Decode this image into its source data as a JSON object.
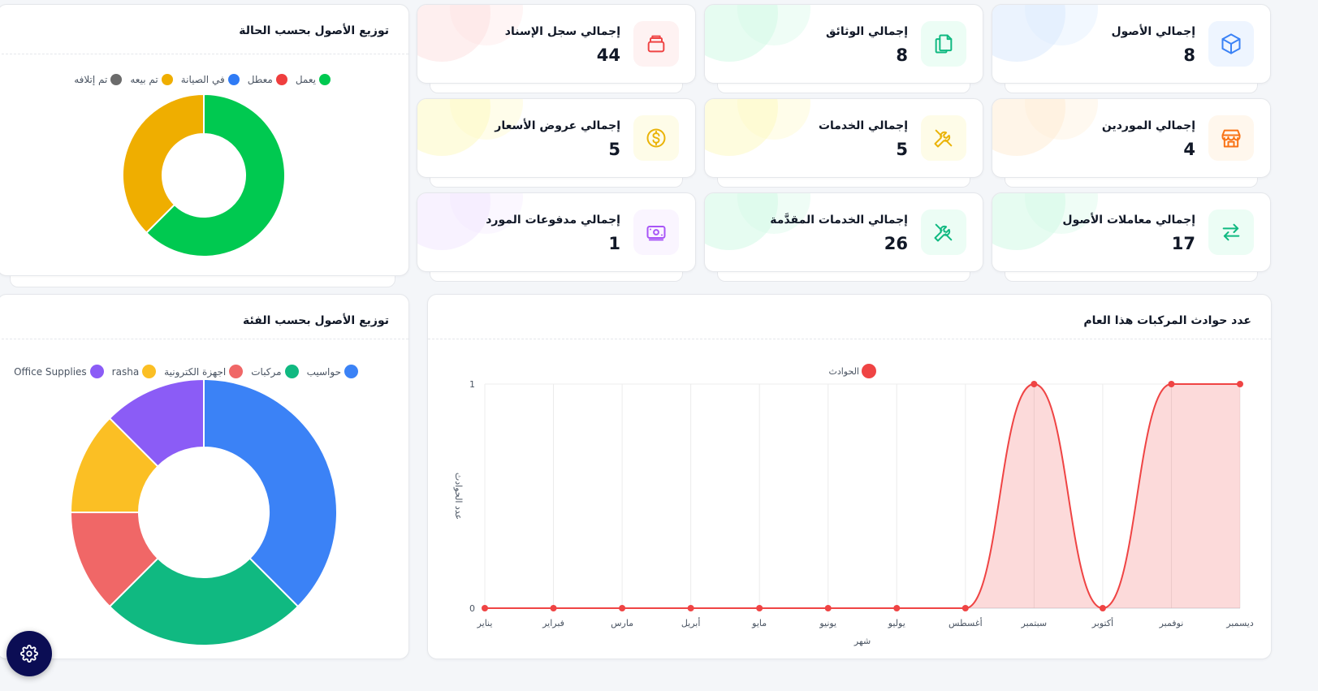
{
  "stats": [
    {
      "label": "إجمالي الأصول",
      "value": "8",
      "icon": "cube-icon",
      "color": "#3b82f6",
      "bg": "#eef5ff",
      "blob": "#dbeafe"
    },
    {
      "label": "إجمالي الوثائق",
      "value": "8",
      "icon": "documents-icon",
      "color": "#10b981",
      "bg": "#ecfdf5",
      "blob": "#d1fae5"
    },
    {
      "label": "إجمالي سجل الإسناد",
      "value": "44",
      "icon": "stack-icon",
      "color": "#ef4444",
      "bg": "#fef2f2",
      "blob": "#fee2e2"
    },
    {
      "label": "إجمالي الموردين",
      "value": "4",
      "icon": "store-icon",
      "color": "#f97316",
      "bg": "#fff7ed",
      "blob": "#ffedd5"
    },
    {
      "label": "إجمالي الخدمات",
      "value": "5",
      "icon": "tools-icon",
      "color": "#eab308",
      "bg": "#fefce8",
      "blob": "#fef9c3"
    },
    {
      "label": "إجمالي عروض الأسعار",
      "value": "5",
      "icon": "dollar-icon",
      "color": "#eab308",
      "bg": "#fefce8",
      "blob": "#fef9c3"
    },
    {
      "label": "إجمالي معاملات الأصول",
      "value": "17",
      "icon": "exchange-icon",
      "color": "#10b981",
      "bg": "#ecfdf5",
      "blob": "#d1fae5"
    },
    {
      "label": "إجمالي الخدمات المقدَّمة",
      "value": "26",
      "icon": "tools-icon",
      "color": "#10b981",
      "bg": "#ecfdf5",
      "blob": "#d1fae5"
    },
    {
      "label": "إجمالي مدفوعات المورد",
      "value": "1",
      "icon": "cash-icon",
      "color": "#a855f7",
      "bg": "#faf5ff",
      "blob": "#f3e8ff"
    }
  ],
  "status_panel": {
    "title": "توزيع الأصول بحسب الحالة"
  },
  "category_panel": {
    "title": "توزيع الأصول بحسب الفئة"
  },
  "accidents_panel": {
    "title": "عدد حوادث المركبات هذا العام"
  },
  "chart_data": [
    {
      "type": "pie",
      "id": "status",
      "donut": true,
      "labels": [
        "يعمل",
        "معطل",
        "في الصيانة",
        "تم بيعه",
        "تم إتلافه"
      ],
      "colors": [
        "#00c950",
        "#ef3e3e",
        "#2f7bf5",
        "#efae00",
        "#6b6b6b"
      ],
      "values": [
        5,
        0,
        0,
        3,
        0
      ]
    },
    {
      "type": "pie",
      "id": "category",
      "donut": true,
      "labels": [
        "حواسيب",
        "مركبات",
        "اجهزة الكترونية",
        "rasha",
        "Office Supplies"
      ],
      "colors": [
        "#3b82f6",
        "#10b981",
        "#f06767",
        "#fbbf24",
        "#8b5cf6"
      ],
      "values": [
        3,
        2,
        1,
        1,
        1
      ]
    },
    {
      "type": "area",
      "id": "accidents",
      "series": [
        {
          "name": "الحوادث",
          "color": "#ef4444",
          "values": [
            0,
            0,
            0,
            0,
            0,
            0,
            0,
            0,
            1,
            0,
            1,
            1
          ]
        }
      ],
      "categories": [
        "يناير",
        "فبراير",
        "مارس",
        "أبريل",
        "مايو",
        "يونيو",
        "يوليو",
        "أغسطس",
        "سبتمبر",
        "أكتوبر",
        "نوفمبر",
        "ديسمبر"
      ],
      "xlabel": "شهر",
      "ylabel": "عدد الحوادث",
      "ylim": [
        0,
        1
      ],
      "yticks": [
        "0",
        "1"
      ]
    }
  ],
  "settings": {
    "icon": "gear-icon"
  }
}
